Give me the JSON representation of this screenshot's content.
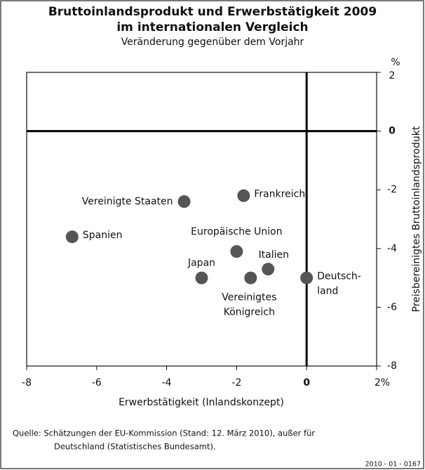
{
  "chart_data": {
    "type": "scatter",
    "title": [
      "Bruttoinlandsprodukt und Erwerbstätigkeit 2009",
      "im internationalen Vergleich"
    ],
    "subtitle": "Veränderung gegenüber dem Vorjahr",
    "x_label": "Erwerbstätigkeit (Inlandskonzept)",
    "y_label": "Preisbereinigtes Bruttoinlandsprodukt",
    "y_unit": "%",
    "x": [
      -3.5,
      -1.8,
      -6.7,
      -2.0,
      -1.1,
      -3.0,
      -1.6,
      0
    ],
    "y": [
      -2.4,
      -2.2,
      -3.6,
      -4.1,
      -4.7,
      -5.0,
      -5.0,
      -5.0
    ],
    "point_labels": [
      [
        "Vereinigte Staaten"
      ],
      [
        "Frankreich"
      ],
      [
        "Spanien"
      ],
      [
        "Europäische Union"
      ],
      [
        "Italien"
      ],
      [
        "Japan"
      ],
      [
        "Vereinigtes",
        "Königreich"
      ],
      [
        "Deutsch-",
        "land"
      ]
    ],
    "color": "#555555",
    "xlim": [
      -8,
      2
    ],
    "ylim": [
      -8,
      2
    ],
    "xticks": [
      -8,
      -6,
      -4,
      -2,
      0,
      {
        "value": 2,
        "label": "2%"
      }
    ],
    "yticks": [
      2,
      0,
      -2,
      -4,
      -6,
      -8
    ],
    "source": [
      "Quelle: Schätzungen der EU-Kommission (Stand: 12. März 2010), außer für",
      "Deutschland (Statistisches Bundesamt)."
    ],
    "code": "2010 - 01 - 0167"
  }
}
